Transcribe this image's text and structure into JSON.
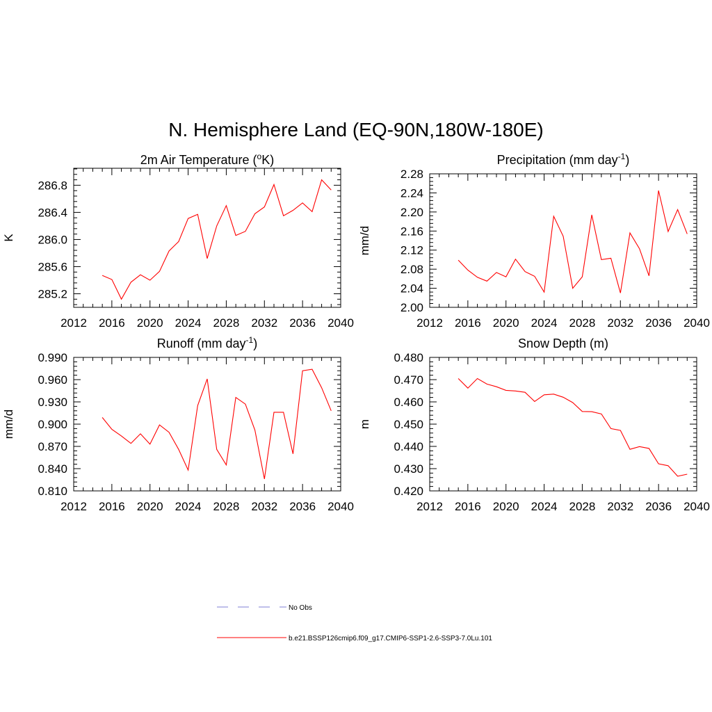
{
  "title": "N. Hemisphere Land (EQ-90N,180W-180E)",
  "legend": {
    "items": [
      {
        "label": "No Obs",
        "color": "#9999dd",
        "style": "dashed"
      },
      {
        "label": "b.e21.BSSP126cmip6.f09_g17.CMIP6-SSP1-2.6-SSP3-7.0Lu.101",
        "color": "#ff0000",
        "style": "solid"
      }
    ]
  },
  "chart_data": [
    {
      "type": "line",
      "title": "2m Air Temperature (",
      "title_sup": "o",
      "title_after": "K)",
      "ylabel": "K",
      "xlim": [
        2012,
        2040
      ],
      "ylim": [
        285.0,
        287.05
      ],
      "xticks": [
        "2012",
        "2016",
        "2020",
        "2024",
        "2028",
        "2032",
        "2036",
        "2040"
      ],
      "yticks": [
        "285.2",
        "285.6",
        "286.0",
        "286.4",
        "286.8"
      ],
      "series": [
        {
          "name": "b.e21.BSSP126cmip6.f09_g17.CMIP6-SSP1-2.6-SSP3-7.0Lu.101",
          "color": "#ff0000",
          "x": [
            2015,
            2016,
            2017,
            2018,
            2019,
            2020,
            2021,
            2022,
            2023,
            2024,
            2025,
            2026,
            2027,
            2028,
            2029,
            2030,
            2031,
            2032,
            2033,
            2034,
            2035,
            2036,
            2037,
            2038,
            2039
          ],
          "values": [
            285.47,
            285.41,
            285.12,
            285.37,
            285.48,
            285.4,
            285.53,
            285.83,
            285.97,
            286.31,
            286.37,
            285.72,
            286.2,
            286.5,
            286.06,
            286.12,
            286.38,
            286.48,
            286.81,
            286.35,
            286.43,
            286.54,
            286.41,
            286.88,
            286.73
          ]
        }
      ]
    },
    {
      "type": "line",
      "title": "Precipitation (mm day",
      "title_sup": "-1",
      "title_after": ")",
      "ylabel": "mm/d",
      "xlim": [
        2012,
        2040
      ],
      "ylim": [
        2.0,
        2.28
      ],
      "xticks": [
        "2012",
        "2016",
        "2020",
        "2024",
        "2028",
        "2032",
        "2036",
        "2040"
      ],
      "yticks": [
        "2.00",
        "2.04",
        "2.08",
        "2.12",
        "2.16",
        "2.20",
        "2.24",
        "2.28"
      ],
      "series": [
        {
          "name": "b.e21.BSSP126cmip6.f09_g17.CMIP6-SSP1-2.6-SSP3-7.0Lu.101",
          "color": "#ff0000",
          "x": [
            2015,
            2016,
            2017,
            2018,
            2019,
            2020,
            2021,
            2022,
            2023,
            2024,
            2025,
            2026,
            2027,
            2028,
            2029,
            2030,
            2031,
            2032,
            2033,
            2034,
            2035,
            2036,
            2037,
            2038,
            2039
          ],
          "values": [
            2.099,
            2.078,
            2.063,
            2.055,
            2.073,
            2.064,
            2.101,
            2.075,
            2.065,
            2.032,
            2.191,
            2.149,
            2.04,
            2.064,
            2.194,
            2.1,
            2.103,
            2.03,
            2.156,
            2.123,
            2.066,
            2.245,
            2.159,
            2.205,
            2.154
          ]
        }
      ]
    },
    {
      "type": "line",
      "title": "Runoff (mm day",
      "title_sup": "-1",
      "title_after": ")",
      "ylabel": "mm/d",
      "xlim": [
        2012,
        2040
      ],
      "ylim": [
        0.81,
        0.99
      ],
      "xticks": [
        "2012",
        "2016",
        "2020",
        "2024",
        "2028",
        "2032",
        "2036",
        "2040"
      ],
      "yticks": [
        "0.810",
        "0.840",
        "0.870",
        "0.900",
        "0.930",
        "0.960",
        "0.990"
      ],
      "series": [
        {
          "name": "b.e21.BSSP126cmip6.f09_g17.CMIP6-SSP1-2.6-SSP3-7.0Lu.101",
          "color": "#ff0000",
          "x": [
            2015,
            2016,
            2017,
            2018,
            2019,
            2020,
            2021,
            2022,
            2023,
            2024,
            2025,
            2026,
            2027,
            2028,
            2029,
            2030,
            2031,
            2032,
            2033,
            2034,
            2035,
            2036,
            2037,
            2038,
            2039
          ],
          "values": [
            0.909,
            0.893,
            0.884,
            0.874,
            0.887,
            0.873,
            0.899,
            0.889,
            0.866,
            0.838,
            0.925,
            0.961,
            0.866,
            0.845,
            0.936,
            0.927,
            0.892,
            0.826,
            0.916,
            0.916,
            0.86,
            0.972,
            0.974,
            0.949,
            0.918
          ]
        }
      ]
    },
    {
      "type": "line",
      "title": "Snow Depth (m)",
      "title_sup": "",
      "title_after": "",
      "ylabel": "m",
      "xlim": [
        2012,
        2040
      ],
      "ylim": [
        0.42,
        0.48
      ],
      "xticks": [
        "2012",
        "2016",
        "2020",
        "2024",
        "2028",
        "2032",
        "2036",
        "2040"
      ],
      "yticks": [
        "0.420",
        "0.430",
        "0.440",
        "0.450",
        "0.460",
        "0.470",
        "0.480"
      ],
      "series": [
        {
          "name": "b.e21.BSSP126cmip6.f09_g17.CMIP6-SSP1-2.6-SSP3-7.0Lu.101",
          "color": "#ff0000",
          "x": [
            2015,
            2016,
            2017,
            2018,
            2019,
            2020,
            2021,
            2022,
            2023,
            2024,
            2025,
            2026,
            2027,
            2028,
            2029,
            2030,
            2031,
            2032,
            2033,
            2034,
            2035,
            2036,
            2037,
            2038,
            2039
          ],
          "values": [
            0.4705,
            0.4662,
            0.4705,
            0.468,
            0.4668,
            0.4652,
            0.4649,
            0.4643,
            0.4602,
            0.4632,
            0.4635,
            0.4621,
            0.4597,
            0.4557,
            0.4556,
            0.4546,
            0.448,
            0.4472,
            0.4387,
            0.4399,
            0.4391,
            0.4322,
            0.4313,
            0.4266,
            0.4275
          ]
        }
      ]
    }
  ]
}
